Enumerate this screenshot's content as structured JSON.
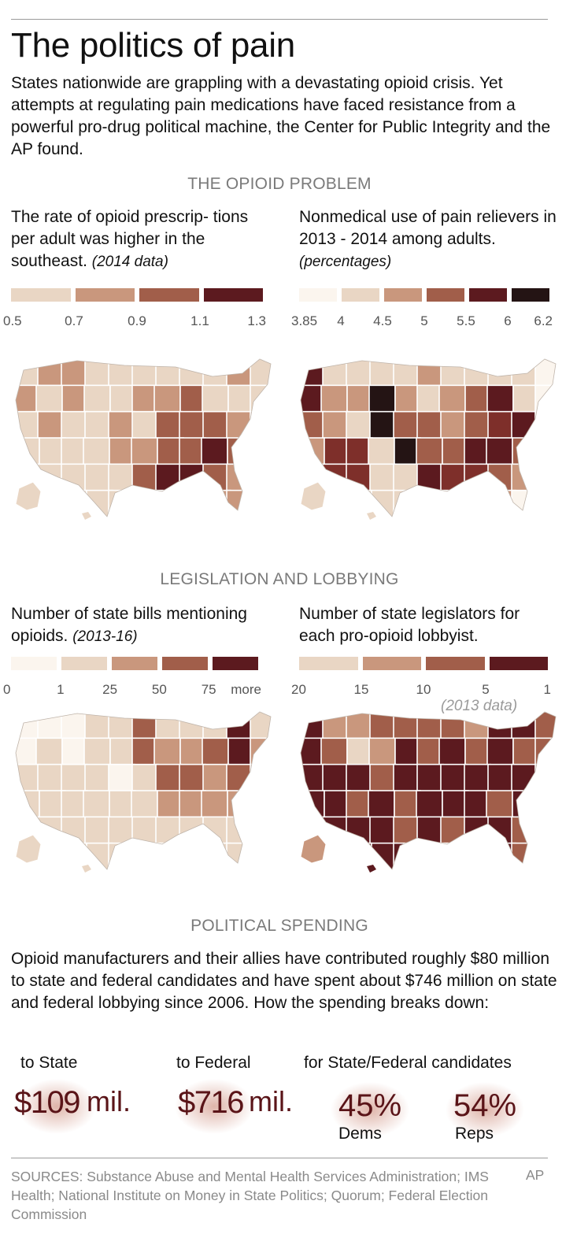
{
  "title": "The politics of pain",
  "intro": "States nationwide are grappling with a devastating opioid crisis. Yet attempts at regulating pain medications have faced resistance from a powerful pro-drug political machine, the Center for Public Integrity and the AP found.",
  "colors": {
    "c0": "#fbf5ee",
    "c1": "#e9d6c4",
    "c2": "#c9977d",
    "c3": "#a15e4a",
    "c4": "#7e2f2a",
    "c5": "#5c1a1f",
    "c6": "#241414",
    "text_dark": "#111111",
    "section_grey": "#7a7a7a",
    "sources_grey": "#8a8a8a",
    "spend_number": "#5a1418"
  },
  "sections": {
    "problem": "THE OPIOID PROBLEM",
    "legislation": "LEGISLATION AND LOBBYING",
    "spending": "POLITICAL SPENDING"
  },
  "maps": [
    {
      "caption": "The rate of opioid prescrip- tions per adult was higher in the southeast.",
      "caption_note": "(2014 data)",
      "legend_colors": [
        "#e9d6c4",
        "#c9977d",
        "#a15e4a",
        "#5c1a1f"
      ],
      "ticks": [
        "0.5",
        "0.7",
        "0.9",
        "1.1",
        "1.3"
      ],
      "note": "",
      "icon": "us-states-map-icon"
    },
    {
      "caption": "Nonmedical use of pain relievers in 2013 - 2014 among adults.",
      "caption_note": "(percentages)",
      "legend_colors": [
        "#fbf5ee",
        "#e9d6c4",
        "#c9977d",
        "#a15e4a",
        "#5c1a1f",
        "#241414"
      ],
      "ticks": [
        "3.85",
        "4",
        "4.5",
        "5",
        "5.5",
        "6",
        "6.2"
      ],
      "note": "",
      "icon": "us-states-map-icon"
    },
    {
      "caption": "Number of state bills mentioning opioids.",
      "caption_note": "(2013-16)",
      "legend_colors": [
        "#fbf5ee",
        "#e9d6c4",
        "#c9977d",
        "#a15e4a",
        "#5c1a1f"
      ],
      "ticks": [
        "0",
        "1",
        "25",
        "50",
        "75",
        "more"
      ],
      "note": "",
      "icon": "us-states-map-icon"
    },
    {
      "caption": "Number of state legislators for each pro-opioid lobbyist.",
      "caption_note": "",
      "legend_colors": [
        "#e9d6c4",
        "#c9977d",
        "#a15e4a",
        "#5c1a1f"
      ],
      "ticks": [
        "20",
        "15",
        "10",
        "5",
        "1"
      ],
      "note": "(2013 data)",
      "icon": "us-states-map-icon"
    }
  ],
  "spending": {
    "text": "Opioid manufacturers and their allies have contributed roughly $80 million to state and federal candidates and have spent about $746 million on state and federal lobbying since 2006. How the spending breaks down:",
    "state_label": "to State",
    "state_value": "$109",
    "state_unit": "mil.",
    "federal_label": "to Federal",
    "federal_value": "$716",
    "federal_unit": "mil.",
    "candidates_label": "for State/Federal candidates",
    "dems_value": "45%",
    "dems_label": "Dems",
    "reps_value": "54%",
    "reps_label": "Reps"
  },
  "sources": "SOURCES: Substance Abuse and Mental Health Services Administration; IMS Health; National Institute on Money in State Politics; Quorum; Federal Election Commission",
  "credit": "AP"
}
